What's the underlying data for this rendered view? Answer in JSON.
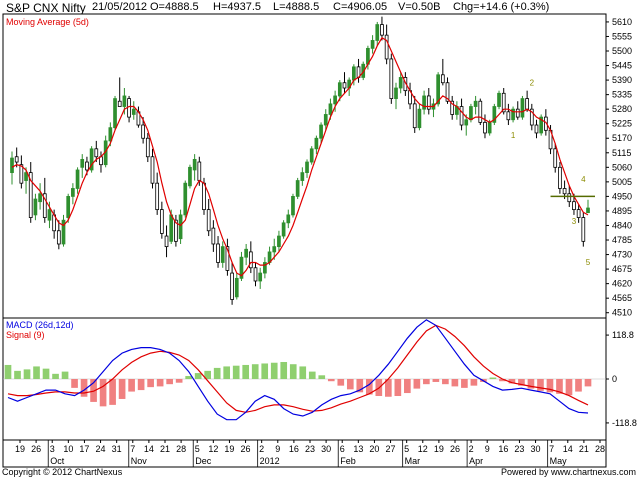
{
  "header": {
    "symbol": "S&P CNX Nifty",
    "date": "21/05/2012",
    "open": "O=4888.5",
    "high": "H=4937.5",
    "low": "L=4888.5",
    "close": "C=4906.05",
    "volume": "V=0.50B",
    "change": "Chg=+14.6 (+0.3%)"
  },
  "footer": {
    "copyright": "Copyright © 2012 ChartNexus",
    "powered": "Powered by www.chartnexus.com"
  },
  "colors": {
    "up": "#2f8f2f",
    "down": "#000000",
    "ma": "#e00000",
    "macd": "#0000e0",
    "signal": "#e00000",
    "hist_up": "#8fcf6f",
    "hist_down": "#f08080",
    "annotation": "#8b8b00",
    "hline": "#556b00"
  },
  "chart_data": [
    {
      "type": "candlestick",
      "legend": [
        "Moving Average (5d)"
      ],
      "y_ticks": [
        4510,
        4565,
        4620,
        4675,
        4730,
        4785,
        4840,
        4895,
        4950,
        5005,
        5060,
        5115,
        5170,
        5225,
        5280,
        5335,
        5390,
        5445,
        5500,
        5555,
        5610
      ],
      "ylim": [
        4490,
        5640
      ],
      "ohlc": [
        [
          5040,
          5120,
          4995,
          5095
        ],
        [
          5100,
          5135,
          5060,
          5080
        ],
        [
          5070,
          5105,
          4980,
          5000
        ],
        [
          5010,
          5060,
          4960,
          5040
        ],
        [
          5040,
          5080,
          4850,
          4870
        ],
        [
          4880,
          4960,
          4860,
          4940
        ],
        [
          4930,
          5000,
          4900,
          4960
        ],
        [
          4960,
          5020,
          4850,
          4870
        ],
        [
          4860,
          4930,
          4830,
          4900
        ],
        [
          4880,
          4900,
          4790,
          4820
        ],
        [
          4820,
          4860,
          4750,
          4770
        ],
        [
          4770,
          4880,
          4760,
          4860
        ],
        [
          4870,
          4960,
          4850,
          4950
        ],
        [
          4950,
          5000,
          4920,
          4980
        ],
        [
          4980,
          5060,
          4960,
          5050
        ],
        [
          5060,
          5110,
          5020,
          5090
        ],
        [
          5080,
          5100,
          5030,
          5050
        ],
        [
          5050,
          5140,
          5040,
          5130
        ],
        [
          5130,
          5160,
          5080,
          5100
        ],
        [
          5100,
          5120,
          5040,
          5070
        ],
        [
          5070,
          5180,
          5060,
          5160
        ],
        [
          5160,
          5230,
          5140,
          5210
        ],
        [
          5210,
          5330,
          5200,
          5320
        ],
        [
          5310,
          5400,
          5290,
          5290
        ],
        [
          5290,
          5360,
          5260,
          5330
        ],
        [
          5320,
          5330,
          5230,
          5250
        ],
        [
          5260,
          5310,
          5240,
          5280
        ],
        [
          5270,
          5290,
          5210,
          5220
        ],
        [
          5220,
          5250,
          5150,
          5170
        ],
        [
          5170,
          5190,
          5080,
          5100
        ],
        [
          5100,
          5130,
          4980,
          5000
        ],
        [
          5000,
          5040,
          4880,
          4900
        ],
        [
          4900,
          4930,
          4790,
          4810
        ],
        [
          4800,
          4840,
          4720,
          4760
        ],
        [
          4780,
          4900,
          4770,
          4880
        ],
        [
          4860,
          4880,
          4760,
          4780
        ],
        [
          4790,
          4900,
          4770,
          4880
        ],
        [
          4880,
          5010,
          4870,
          5000
        ],
        [
          4990,
          5070,
          4980,
          5060
        ],
        [
          5050,
          5110,
          5010,
          5090
        ],
        [
          5080,
          5100,
          4990,
          5010
        ],
        [
          5000,
          5020,
          4880,
          4900
        ],
        [
          4900,
          4940,
          4800,
          4820
        ],
        [
          4830,
          4860,
          4740,
          4770
        ],
        [
          4770,
          4800,
          4680,
          4700
        ],
        [
          4700,
          4780,
          4680,
          4760
        ],
        [
          4760,
          4790,
          4650,
          4670
        ],
        [
          4660,
          4700,
          4540,
          4560
        ],
        [
          4570,
          4660,
          4560,
          4640
        ],
        [
          4640,
          4740,
          4630,
          4720
        ],
        [
          4720,
          4770,
          4690,
          4750
        ],
        [
          4740,
          4780,
          4660,
          4680
        ],
        [
          4680,
          4700,
          4610,
          4630
        ],
        [
          4630,
          4680,
          4600,
          4660
        ],
        [
          4660,
          4720,
          4640,
          4700
        ],
        [
          4700,
          4760,
          4690,
          4740
        ],
        [
          4740,
          4790,
          4710,
          4760
        ],
        [
          4760,
          4820,
          4740,
          4800
        ],
        [
          4800,
          4860,
          4790,
          4850
        ],
        [
          4850,
          4900,
          4830,
          4880
        ],
        [
          4880,
          4960,
          4870,
          4950
        ],
        [
          4950,
          5020,
          4940,
          5010
        ],
        [
          5010,
          5060,
          4990,
          5040
        ],
        [
          5040,
          5090,
          5020,
          5080
        ],
        [
          5080,
          5140,
          5070,
          5130
        ],
        [
          5130,
          5180,
          5110,
          5170
        ],
        [
          5170,
          5230,
          5150,
          5220
        ],
        [
          5220,
          5280,
          5200,
          5260
        ],
        [
          5260,
          5320,
          5240,
          5300
        ],
        [
          5300,
          5350,
          5270,
          5330
        ],
        [
          5330,
          5390,
          5310,
          5380
        ],
        [
          5380,
          5420,
          5340,
          5360
        ],
        [
          5360,
          5400,
          5330,
          5390
        ],
        [
          5390,
          5450,
          5370,
          5440
        ],
        [
          5440,
          5470,
          5380,
          5400
        ],
        [
          5400,
          5460,
          5390,
          5450
        ],
        [
          5450,
          5520,
          5430,
          5510
        ],
        [
          5510,
          5560,
          5490,
          5540
        ],
        [
          5540,
          5610,
          5520,
          5600
        ],
        [
          5600,
          5630,
          5540,
          5560
        ],
        [
          5560,
          5600,
          5450,
          5470
        ],
        [
          5470,
          5490,
          5300,
          5320
        ],
        [
          5320,
          5380,
          5280,
          5360
        ],
        [
          5360,
          5420,
          5340,
          5400
        ],
        [
          5400,
          5420,
          5330,
          5350
        ],
        [
          5350,
          5380,
          5280,
          5300
        ],
        [
          5300,
          5330,
          5190,
          5210
        ],
        [
          5210,
          5300,
          5200,
          5280
        ],
        [
          5280,
          5350,
          5260,
          5330
        ],
        [
          5330,
          5360,
          5260,
          5280
        ],
        [
          5280,
          5320,
          5250,
          5300
        ],
        [
          5300,
          5420,
          5290,
          5410
        ],
        [
          5410,
          5470,
          5370,
          5380
        ],
        [
          5380,
          5400,
          5300,
          5310
        ],
        [
          5310,
          5330,
          5240,
          5260
        ],
        [
          5260,
          5310,
          5240,
          5290
        ],
        [
          5290,
          5320,
          5200,
          5220
        ],
        [
          5220,
          5260,
          5180,
          5240
        ],
        [
          5240,
          5300,
          5230,
          5290
        ],
        [
          5290,
          5330,
          5260,
          5310
        ],
        [
          5310,
          5320,
          5220,
          5230
        ],
        [
          5230,
          5260,
          5170,
          5190
        ],
        [
          5190,
          5240,
          5180,
          5230
        ],
        [
          5230,
          5300,
          5220,
          5290
        ],
        [
          5290,
          5350,
          5280,
          5340
        ],
        [
          5340,
          5360,
          5260,
          5270
        ],
        [
          5270,
          5300,
          5220,
          5240
        ],
        [
          5240,
          5290,
          5230,
          5280
        ],
        [
          5280,
          5310,
          5240,
          5250
        ],
        [
          5250,
          5330,
          5240,
          5320
        ],
        [
          5320,
          5350,
          5270,
          5280
        ],
        [
          5280,
          5300,
          5200,
          5220
        ],
        [
          5220,
          5240,
          5170,
          5190
        ],
        [
          5190,
          5260,
          5180,
          5250
        ],
        [
          5250,
          5280,
          5180,
          5200
        ],
        [
          5200,
          5220,
          5110,
          5130
        ],
        [
          5130,
          5150,
          5040,
          5060
        ],
        [
          5060,
          5080,
          4960,
          4980
        ],
        [
          4980,
          5010,
          4940,
          4960
        ],
        [
          4960,
          4990,
          4910,
          4930
        ],
        [
          4930,
          4960,
          4880,
          4900
        ],
        [
          4900,
          4920,
          4850,
          4870
        ],
        [
          4870,
          4890,
          4760,
          4780
        ],
        [
          4888.5,
          4937.5,
          4888.5,
          4906.05
        ]
      ],
      "ma5": [
        5060,
        5070,
        5065,
        5050,
        5010,
        4990,
        4970,
        4940,
        4910,
        4880,
        4850,
        4840,
        4860,
        4900,
        4950,
        5000,
        5040,
        5070,
        5090,
        5100,
        5120,
        5150,
        5200,
        5240,
        5280,
        5290,
        5290,
        5270,
        5240,
        5200,
        5140,
        5080,
        5000,
        4930,
        4880,
        4850,
        4840,
        4860,
        4920,
        4980,
        5010,
        5000,
        4960,
        4900,
        4840,
        4790,
        4750,
        4700,
        4660,
        4650,
        4670,
        4700,
        4700,
        4690,
        4690,
        4700,
        4720,
        4740,
        4770,
        4800,
        4840,
        4890,
        4940,
        4990,
        5050,
        5100,
        5150,
        5200,
        5250,
        5290,
        5320,
        5340,
        5360,
        5390,
        5400,
        5420,
        5450,
        5480,
        5520,
        5550,
        5540,
        5500,
        5460,
        5420,
        5380,
        5350,
        5320,
        5300,
        5290,
        5290,
        5290,
        5310,
        5330,
        5320,
        5300,
        5290,
        5270,
        5250,
        5240,
        5250,
        5250,
        5240,
        5230,
        5240,
        5260,
        5280,
        5280,
        5270,
        5270,
        5270,
        5280,
        5270,
        5250,
        5240,
        5230,
        5200,
        5150,
        5090,
        5040,
        4990,
        4950,
        4920,
        4890,
        4880
      ]
    },
    {
      "type": "line+histogram",
      "legend": [
        "MACD (26d,12d)",
        "Signal (9)"
      ],
      "y_ticks": [
        118.8,
        0,
        -118.8
      ],
      "ylim": [
        -165,
        165
      ],
      "macd": [
        -50,
        -60,
        -50,
        -40,
        -30,
        -30,
        -40,
        -45,
        -30,
        -10,
        20,
        50,
        70,
        80,
        85,
        85,
        80,
        70,
        50,
        20,
        -20,
        -60,
        -95,
        -110,
        -110,
        -90,
        -60,
        -45,
        -55,
        -80,
        -95,
        -100,
        -90,
        -70,
        -55,
        -45,
        -40,
        -30,
        -15,
        10,
        40,
        75,
        110,
        140,
        160,
        145,
        110,
        75,
        40,
        10,
        -5,
        -20,
        -30,
        -28,
        -25,
        -30,
        -35,
        -40,
        -60,
        -80,
        -90,
        -92
      ],
      "signal": [
        -40,
        -45,
        -45,
        -42,
        -38,
        -35,
        -35,
        -38,
        -38,
        -33,
        -20,
        0,
        25,
        45,
        60,
        70,
        75,
        72,
        65,
        50,
        25,
        -5,
        -35,
        -65,
        -85,
        -90,
        -85,
        -75,
        -70,
        -70,
        -75,
        -82,
        -87,
        -85,
        -78,
        -68,
        -60,
        -50,
        -40,
        -25,
        0,
        30,
        65,
        100,
        130,
        145,
        135,
        115,
        90,
        60,
        35,
        15,
        0,
        -10,
        -15,
        -20,
        -24,
        -28,
        -35,
        -45,
        -58,
        -70
      ],
      "histogram": [
        38,
        22,
        26,
        34,
        28,
        14,
        20,
        -24,
        -48,
        -62,
        -74,
        -70,
        -54,
        -34,
        -30,
        -22,
        -20,
        -14,
        -10,
        8,
        16,
        22,
        30,
        34,
        36,
        38,
        40,
        42,
        44,
        46,
        40,
        34,
        20,
        10,
        -6,
        -18,
        -28,
        -36,
        -42,
        -46,
        -48,
        -46,
        -38,
        -26,
        -14,
        -8,
        -14,
        -20,
        -24,
        -18,
        -8,
        4,
        -6,
        -12,
        -18,
        -26,
        -32,
        -36,
        -40,
        -44,
        -34,
        -20
      ]
    }
  ],
  "x_axis": {
    "day_labels": [
      "19",
      "26",
      "3",
      "10",
      "17",
      "24",
      "31",
      "7",
      "14",
      "21",
      "28",
      "5",
      "12",
      "19",
      "26",
      "2",
      "9",
      "16",
      "23",
      "30",
      "6",
      "13",
      "20",
      "27",
      "5",
      "12",
      "19",
      "26",
      "2",
      "9",
      "16",
      "23",
      "30",
      "7",
      "14",
      "21",
      "28"
    ],
    "month_labels": [
      "Oct",
      "Nov",
      "Dec",
      "2012",
      "Feb",
      "Mar",
      "Apr",
      "May"
    ]
  },
  "annotations": {
    "wave_labels": [
      "1",
      "2",
      "3",
      "4",
      "5"
    ]
  }
}
